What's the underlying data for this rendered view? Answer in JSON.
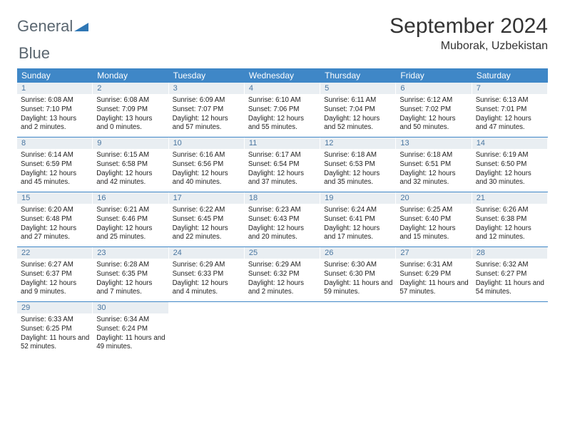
{
  "logo": {
    "text1": "General",
    "text2": "Blue"
  },
  "title": "September 2024",
  "subtitle": "Muborak, Uzbekistan",
  "colors": {
    "header_bg": "#3f87c7",
    "header_text": "#ffffff",
    "daynum_bg": "#e9eef2",
    "daynum_text": "#4a76a0",
    "row_border": "#3f87c7",
    "logo_gray": "#5a6670",
    "logo_blue": "#2f77b5"
  },
  "weekdays": [
    "Sunday",
    "Monday",
    "Tuesday",
    "Wednesday",
    "Thursday",
    "Friday",
    "Saturday"
  ],
  "weeks": [
    [
      {
        "n": "1",
        "sr": "Sunrise: 6:08 AM",
        "ss": "Sunset: 7:10 PM",
        "dl": "Daylight: 13 hours and 2 minutes."
      },
      {
        "n": "2",
        "sr": "Sunrise: 6:08 AM",
        "ss": "Sunset: 7:09 PM",
        "dl": "Daylight: 13 hours and 0 minutes."
      },
      {
        "n": "3",
        "sr": "Sunrise: 6:09 AM",
        "ss": "Sunset: 7:07 PM",
        "dl": "Daylight: 12 hours and 57 minutes."
      },
      {
        "n": "4",
        "sr": "Sunrise: 6:10 AM",
        "ss": "Sunset: 7:06 PM",
        "dl": "Daylight: 12 hours and 55 minutes."
      },
      {
        "n": "5",
        "sr": "Sunrise: 6:11 AM",
        "ss": "Sunset: 7:04 PM",
        "dl": "Daylight: 12 hours and 52 minutes."
      },
      {
        "n": "6",
        "sr": "Sunrise: 6:12 AM",
        "ss": "Sunset: 7:02 PM",
        "dl": "Daylight: 12 hours and 50 minutes."
      },
      {
        "n": "7",
        "sr": "Sunrise: 6:13 AM",
        "ss": "Sunset: 7:01 PM",
        "dl": "Daylight: 12 hours and 47 minutes."
      }
    ],
    [
      {
        "n": "8",
        "sr": "Sunrise: 6:14 AM",
        "ss": "Sunset: 6:59 PM",
        "dl": "Daylight: 12 hours and 45 minutes."
      },
      {
        "n": "9",
        "sr": "Sunrise: 6:15 AM",
        "ss": "Sunset: 6:58 PM",
        "dl": "Daylight: 12 hours and 42 minutes."
      },
      {
        "n": "10",
        "sr": "Sunrise: 6:16 AM",
        "ss": "Sunset: 6:56 PM",
        "dl": "Daylight: 12 hours and 40 minutes."
      },
      {
        "n": "11",
        "sr": "Sunrise: 6:17 AM",
        "ss": "Sunset: 6:54 PM",
        "dl": "Daylight: 12 hours and 37 minutes."
      },
      {
        "n": "12",
        "sr": "Sunrise: 6:18 AM",
        "ss": "Sunset: 6:53 PM",
        "dl": "Daylight: 12 hours and 35 minutes."
      },
      {
        "n": "13",
        "sr": "Sunrise: 6:18 AM",
        "ss": "Sunset: 6:51 PM",
        "dl": "Daylight: 12 hours and 32 minutes."
      },
      {
        "n": "14",
        "sr": "Sunrise: 6:19 AM",
        "ss": "Sunset: 6:50 PM",
        "dl": "Daylight: 12 hours and 30 minutes."
      }
    ],
    [
      {
        "n": "15",
        "sr": "Sunrise: 6:20 AM",
        "ss": "Sunset: 6:48 PM",
        "dl": "Daylight: 12 hours and 27 minutes."
      },
      {
        "n": "16",
        "sr": "Sunrise: 6:21 AM",
        "ss": "Sunset: 6:46 PM",
        "dl": "Daylight: 12 hours and 25 minutes."
      },
      {
        "n": "17",
        "sr": "Sunrise: 6:22 AM",
        "ss": "Sunset: 6:45 PM",
        "dl": "Daylight: 12 hours and 22 minutes."
      },
      {
        "n": "18",
        "sr": "Sunrise: 6:23 AM",
        "ss": "Sunset: 6:43 PM",
        "dl": "Daylight: 12 hours and 20 minutes."
      },
      {
        "n": "19",
        "sr": "Sunrise: 6:24 AM",
        "ss": "Sunset: 6:41 PM",
        "dl": "Daylight: 12 hours and 17 minutes."
      },
      {
        "n": "20",
        "sr": "Sunrise: 6:25 AM",
        "ss": "Sunset: 6:40 PM",
        "dl": "Daylight: 12 hours and 15 minutes."
      },
      {
        "n": "21",
        "sr": "Sunrise: 6:26 AM",
        "ss": "Sunset: 6:38 PM",
        "dl": "Daylight: 12 hours and 12 minutes."
      }
    ],
    [
      {
        "n": "22",
        "sr": "Sunrise: 6:27 AM",
        "ss": "Sunset: 6:37 PM",
        "dl": "Daylight: 12 hours and 9 minutes."
      },
      {
        "n": "23",
        "sr": "Sunrise: 6:28 AM",
        "ss": "Sunset: 6:35 PM",
        "dl": "Daylight: 12 hours and 7 minutes."
      },
      {
        "n": "24",
        "sr": "Sunrise: 6:29 AM",
        "ss": "Sunset: 6:33 PM",
        "dl": "Daylight: 12 hours and 4 minutes."
      },
      {
        "n": "25",
        "sr": "Sunrise: 6:29 AM",
        "ss": "Sunset: 6:32 PM",
        "dl": "Daylight: 12 hours and 2 minutes."
      },
      {
        "n": "26",
        "sr": "Sunrise: 6:30 AM",
        "ss": "Sunset: 6:30 PM",
        "dl": "Daylight: 11 hours and 59 minutes."
      },
      {
        "n": "27",
        "sr": "Sunrise: 6:31 AM",
        "ss": "Sunset: 6:29 PM",
        "dl": "Daylight: 11 hours and 57 minutes."
      },
      {
        "n": "28",
        "sr": "Sunrise: 6:32 AM",
        "ss": "Sunset: 6:27 PM",
        "dl": "Daylight: 11 hours and 54 minutes."
      }
    ],
    [
      {
        "n": "29",
        "sr": "Sunrise: 6:33 AM",
        "ss": "Sunset: 6:25 PM",
        "dl": "Daylight: 11 hours and 52 minutes."
      },
      {
        "n": "30",
        "sr": "Sunrise: 6:34 AM",
        "ss": "Sunset: 6:24 PM",
        "dl": "Daylight: 11 hours and 49 minutes."
      },
      null,
      null,
      null,
      null,
      null
    ]
  ]
}
